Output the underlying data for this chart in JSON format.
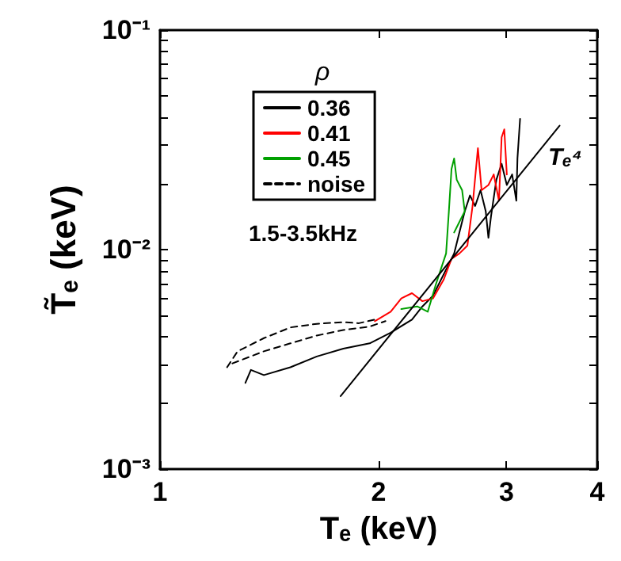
{
  "chart_data": {
    "type": "line",
    "xlabel": "Tₑ (keV)",
    "ylabel": "T̃ₑ (keV)",
    "legend_title": "ρ",
    "log": "xy",
    "legend": "top left",
    "marker": "none",
    "grid": false,
    "xlim": [
      1,
      4
    ],
    "xticks": [
      1,
      2,
      3,
      4
    ],
    "ylim": [
      0.001,
      0.1
    ],
    "yticks": [
      {
        "value": 0.001,
        "label": "10⁻³"
      },
      {
        "value": 0.002,
        "label": null
      },
      {
        "value": 0.003,
        "label": null
      },
      {
        "value": 0.004,
        "label": null
      },
      {
        "value": 0.005,
        "label": null
      },
      {
        "value": 0.006,
        "label": null
      },
      {
        "value": 0.007,
        "label": null
      },
      {
        "value": 0.008,
        "label": null
      },
      {
        "value": 0.009,
        "label": null
      },
      {
        "value": 0.01,
        "label": "10⁻²"
      },
      {
        "value": 0.02,
        "label": null
      },
      {
        "value": 0.03,
        "label": null
      },
      {
        "value": 0.04,
        "label": null
      },
      {
        "value": 0.05,
        "label": null
      },
      {
        "value": 0.06,
        "label": null
      },
      {
        "value": 0.07,
        "label": null
      },
      {
        "value": 0.08,
        "label": null
      },
      {
        "value": 0.09,
        "label": null
      },
      {
        "value": 0.1,
        "label": "10⁻¹"
      }
    ],
    "annotations": [
      "1.5-3.5kHz",
      "Tₑ⁴"
    ],
    "series": [
      {
        "name": "0.36",
        "color": "#000000",
        "line_style": "solid",
        "x": [
          1.311,
          1.334,
          1.39,
          1.512,
          1.644,
          1.788,
          1.944,
          2.078,
          2.223,
          2.298,
          2.376,
          2.457,
          2.541,
          2.584,
          2.628,
          2.672,
          2.716,
          2.763,
          2.809,
          2.833,
          2.856,
          2.905,
          2.954,
          3.003,
          3.054,
          3.095,
          3.106,
          3.132
        ],
        "values": [
          0.00247,
          0.00283,
          0.00268,
          0.00291,
          0.00326,
          0.00354,
          0.00374,
          0.00418,
          0.0048,
          0.00551,
          0.00616,
          0.00769,
          0.0096,
          0.01197,
          0.01493,
          0.01765,
          0.0158,
          0.01866,
          0.01493,
          0.01132,
          0.01413,
          0.0208,
          0.0246,
          0.0197,
          0.022,
          0.0167,
          0.026,
          0.0394
        ]
      },
      {
        "name": "0.41",
        "color": "#ff0000",
        "line_style": "solid",
        "x": [
          1.976,
          2.078,
          2.149,
          2.223,
          2.298,
          2.376,
          2.457,
          2.52,
          2.584,
          2.65,
          2.694,
          2.74,
          2.772,
          2.833,
          2.881,
          2.929,
          2.954,
          2.979,
          3.003
        ],
        "values": [
          0.00472,
          0.00521,
          0.00599,
          0.00633,
          0.00582,
          0.00599,
          0.00727,
          0.00908,
          0.0096,
          0.01042,
          0.0158,
          0.029,
          0.01866,
          0.0197,
          0.022,
          0.0167,
          0.0325,
          0.0353,
          0.022
        ]
      },
      {
        "name": "0.45",
        "color": "#00a000",
        "line_style": "solid",
        "x": [
          2.149,
          2.26,
          2.337,
          2.396,
          2.436,
          2.477,
          2.499,
          2.52,
          2.541,
          2.562,
          2.606,
          2.628,
          2.584,
          2.541
        ],
        "values": [
          0.00536,
          0.00551,
          0.00521,
          0.00688,
          0.00813,
          0.0096,
          0.01493,
          0.0233,
          0.026,
          0.0208,
          0.01866,
          0.01493,
          0.01337,
          0.01197
        ]
      },
      {
        "name": "noise",
        "color": "#000000",
        "line_style": "dashed",
        "x": [
          1.237,
          1.279,
          1.39,
          1.512,
          1.644,
          1.788,
          1.879,
          1.976
        ],
        "values": [
          0.00291,
          0.00344,
          0.00395,
          0.00442,
          0.00459,
          0.00467,
          0.00462,
          0.0048
        ]
      },
      {
        "color": "#000000",
        "line_style": "dashed",
        "x": [
          1.258,
          1.39,
          1.512,
          1.644,
          1.788,
          1.944,
          2.044
        ],
        "values": [
          0.00303,
          0.00344,
          0.00374,
          0.00406,
          0.0043,
          0.00446,
          0.00472
        ]
      },
      {
        "color": "#000000",
        "line_style": "solid",
        "x": [
          1.773,
          3.55
        ],
        "values": [
          0.00215,
          0.0367
        ]
      }
    ]
  }
}
